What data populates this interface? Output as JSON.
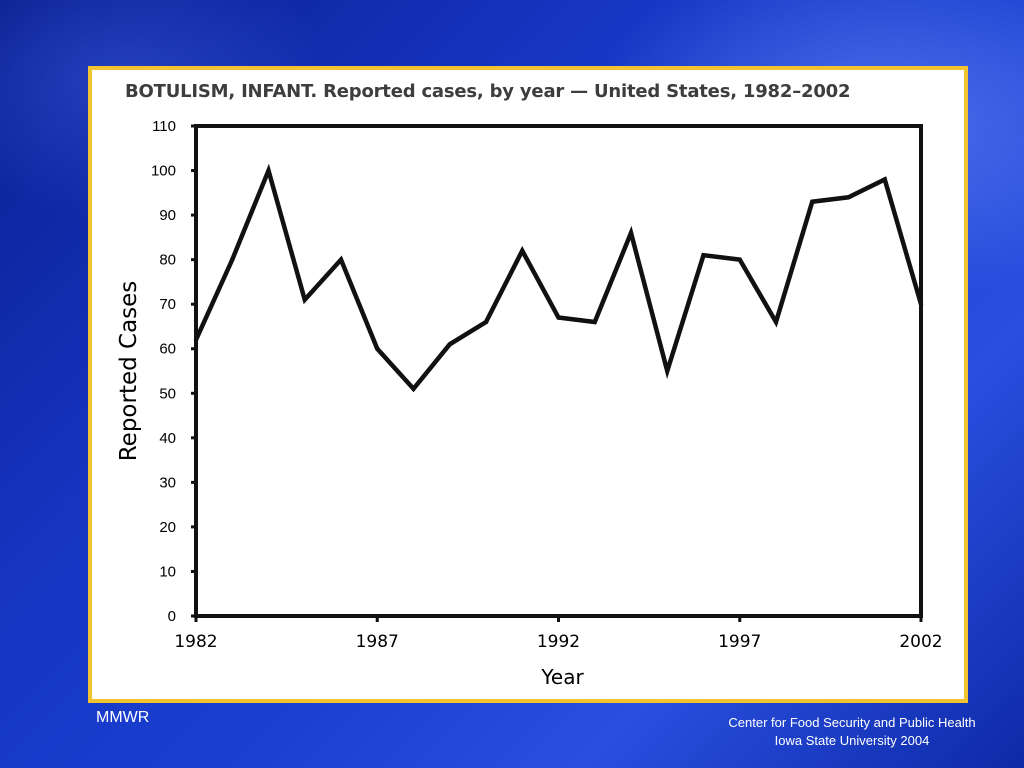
{
  "slide": {
    "footer_left": "MMWR",
    "footer_right_line1": "Center for Food Security and Public Health",
    "footer_right_line2": "Iowa State University 2004"
  },
  "colors": {
    "frame_border": "#f2c230",
    "line": "#111111",
    "background": "#1a3fd0"
  },
  "chart_data": {
    "type": "line",
    "title": "BOTULISM, INFANT. Reported cases, by year — United States, 1982–2002",
    "xlabel": "Year",
    "ylabel": "Reported Cases",
    "x": [
      1982,
      1983,
      1984,
      1985,
      1986,
      1987,
      1988,
      1989,
      1990,
      1991,
      1992,
      1993,
      1994,
      1995,
      1996,
      1997,
      1998,
      1999,
      2000,
      2001,
      2002
    ],
    "series": [
      {
        "values": [
          62,
          80,
          100,
          71,
          80,
          60,
          51,
          61,
          66,
          82,
          67,
          66,
          86,
          55,
          81,
          80,
          66,
          93,
          94,
          98,
          70
        ]
      }
    ],
    "xticks": [
      "1982",
      "1987",
      "1992",
      "1997",
      "2002"
    ],
    "yticks": [
      "0",
      "10",
      "20",
      "30",
      "40",
      "50",
      "60",
      "70",
      "80",
      "90",
      "100",
      "110"
    ],
    "xlim": [
      1982,
      2002
    ],
    "ylim": [
      0,
      110
    ],
    "grid": false,
    "legend": "none"
  }
}
